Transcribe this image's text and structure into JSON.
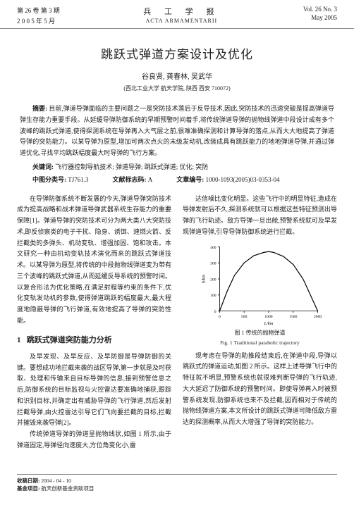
{
  "header": {
    "left_line1": "第 26 卷 第 3 期",
    "left_line2": "2 0 0 5 年 5 月",
    "center_cjk": "兵 工 学 报",
    "center_lat": "ACTA ARMAMENTARII",
    "right_line1": "Vol. 26  No. 3",
    "right_line2": "May  2005"
  },
  "title": "跳跃式弹道方案设计及优化",
  "authors": "谷良贤, 龚春林, 吴武华",
  "affiliation": "(西北工业大学 航天学院, 陕西 西安 710072)",
  "abstract_label": "摘要:",
  "abstract_text": "目前,弹道导弹面临的主要问题之一是突防技术落后于反导技术,因此,突防技术的迅速突破是提高弹道导弹生存能力重要手段。从延缓导弹防御系统的早期预警时间着手,将传统弹道导弹的抛物线弹道中段设计成有多个波峰的跳跃式弹道,使得探测系统在导弹再入大气层之前,很难准确探测和计算导弹的落点,从而大大地提高了弹道导弹的突防能力。以某导弹为原型,增加可两次点火的末级发动机,改装成具有跳跃能力的地地弹道导弹,并通过弹道优化,寻找平均跳跃幅度最大时导弹的飞行方案。",
  "keywords_label": "关键词:",
  "keywords": "飞行器控制导航技术; 弹道导弹; 跳跃式弹道; 优化; 突防",
  "clc_label": "中图分类号:",
  "clc": "TJ761.3",
  "doccode_label": "文献标志码:",
  "doccode": "A",
  "artid_label": "文章编号:",
  "artid": "1000-1093(2005)03-0353-04",
  "left_col": {
    "p1": "在导弹防御系统不断发展的今天,弹道导弹突防技术成为提高战略和战术弹道导弹武器系统生存能力的重要保障[1]。弹道导弹的突防技术可分为两大类八大突防技术,即反侦察类的电子干扰、隐身、诱饵、速燃火箭、反拦截类的多弹头、机动变轨、增强加固、饱和攻击。本文研究一种由机动变轨技术演化而来的跳跃式弹道技术。以某导弹为原型,将传统的中段抛物线弹道变为带有三个波峰的跳跃式弹道,从而延缓反导系统的预警时间。以复合形法为优化策略,在满足射程等约束的条件下,优化变轨发动机的参数,使得弹道跳跃的幅度最大,最大程度地隐蔽导弹的飞行弹道,有效地提高了导弹的突防性能。",
    "sec_num": "1",
    "sec_title": "跳跃式弹道突防能力分析",
    "p2": "及早发现、及早反应、及早防御是导弹防御的关键。要想成功地拦截来袭的战区导弹,第一步就是及时获取、处理和传输来自目标导弹的信息,接到预警信息之后,防御系统的目标监视与火控雷达要准确地捕获,跟踪和识别目标,并确定出有威胁导弹的飞行弹道,然后发射拦截导弹,由火控雷达引导它们飞向要拦截的目标,拦截并摧毁来袭导弹[2]。",
    "p3": "传统弹道导弹的弹道呈抛物线状,如图 1 所示,由于弹道固定,导弹径向速度大,方位角变化小,雷"
  },
  "right_col": {
    "p1": "达信噪比变化明显。这些飞行中的明显特征,造成在导弹发射后不久,探测系统就可以根据这些特征预测出导弹的飞行轨迹。敌方导弹一旦出舱,预警系统就可及早发现弹道导弹,引导导弹防御系统进行拦截。",
    "p2": "现考虑在导弹的助推段结束后,在弹道中段,导弹以跳跃式的弹道运动,如图 2 所示。这样上述导弹飞行中的特征就不明显,预警系统也就很难判断导弹的飞行轨迹,大大延迟了防御系统的预警时间。即使导弹再入时被预警系统发现,防御系统也来不及拦截,因而相对于传统的抛物线弹道方案,本文所设计的跳跃式弹道可降低敌方雷达的探测概率,从而大大增强了导弹的突防能力。"
  },
  "chart": {
    "type": "line",
    "xlabel": "L/km",
    "ylabel": "h/km",
    "xlim": [
      0,
      2000
    ],
    "ylim": [
      0,
      400
    ],
    "xticks": [
      0,
      500,
      1000,
      1500,
      2000
    ],
    "yticks": [
      0,
      100,
      200,
      300,
      400
    ],
    "axis_color": "#000000",
    "line_color": "#000000",
    "line_width": 1.5,
    "background_color": "#ffffff",
    "label_fontsize": 8,
    "tick_fontsize": 7,
    "curve": [
      [
        0,
        0
      ],
      [
        150,
        120
      ],
      [
        300,
        220
      ],
      [
        500,
        300
      ],
      [
        700,
        345
      ],
      [
        900,
        365
      ],
      [
        1000,
        370
      ],
      [
        1100,
        365
      ],
      [
        1300,
        340
      ],
      [
        1500,
        290
      ],
      [
        1700,
        200
      ],
      [
        1850,
        100
      ],
      [
        2000,
        0
      ]
    ],
    "caption_cn": "图 1  传统的抛物弹道",
    "caption_en": "Fig. 1  Traditional parabolic trajectory"
  },
  "footer": {
    "recv_label": "收稿日期:",
    "recv": "2004 - 04 - 10",
    "fund_label": "基金项目:",
    "fund": "航天创新基金资助项目"
  }
}
